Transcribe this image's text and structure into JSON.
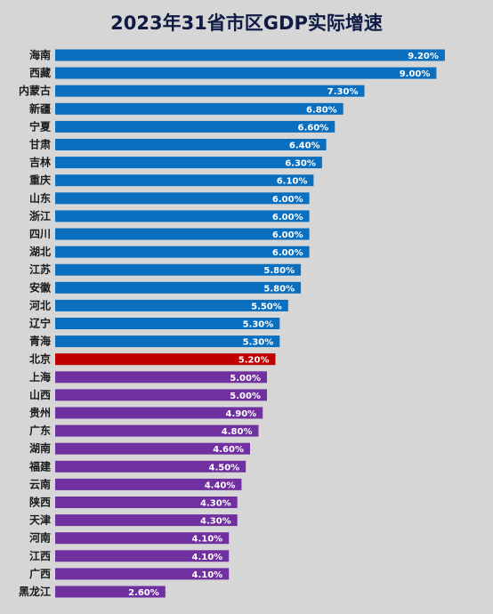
{
  "chart_data": {
    "type": "bar",
    "orientation": "horizontal",
    "title": "2023年31省市区GDP实际增速",
    "categories": [
      "海南",
      "西藏",
      "内蒙古",
      "新疆",
      "宁夏",
      "甘肃",
      "吉林",
      "重庆",
      "山东",
      "浙江",
      "四川",
      "湖北",
      "江苏",
      "安徽",
      "河北",
      "辽宁",
      "青海",
      "北京",
      "上海",
      "山西",
      "贵州",
      "广东",
      "湖南",
      "福建",
      "云南",
      "陕西",
      "天津",
      "河南",
      "江西",
      "广西",
      "黑龙江"
    ],
    "values": [
      9.2,
      9.0,
      7.3,
      6.8,
      6.6,
      6.4,
      6.3,
      6.1,
      6.0,
      6.0,
      6.0,
      6.0,
      5.8,
      5.8,
      5.5,
      5.3,
      5.3,
      5.2,
      5.0,
      5.0,
      4.9,
      4.8,
      4.6,
      4.5,
      4.4,
      4.3,
      4.3,
      4.1,
      4.1,
      4.1,
      2.6
    ],
    "value_labels": [
      "9.20%",
      "9.00%",
      "7.30%",
      "6.80%",
      "6.60%",
      "6.40%",
      "6.30%",
      "6.10%",
      "6.00%",
      "6.00%",
      "6.00%",
      "6.00%",
      "5.80%",
      "5.80%",
      "5.50%",
      "5.30%",
      "5.30%",
      "5.20%",
      "5.00%",
      "5.00%",
      "4.90%",
      "4.80%",
      "4.60%",
      "4.50%",
      "4.40%",
      "4.30%",
      "4.30%",
      "4.10%",
      "4.10%",
      "4.10%",
      "2.60%"
    ],
    "colors": {
      "above": "#0b6fbf",
      "highlight": "#c00000",
      "below": "#7030a0",
      "background": "#d6d6d6"
    },
    "highlight_category": "北京",
    "grid": false,
    "legend": "none"
  }
}
